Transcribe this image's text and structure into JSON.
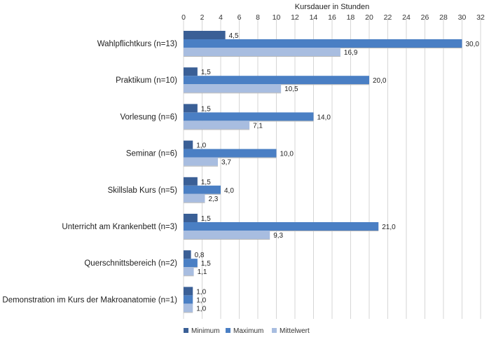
{
  "chart_data": {
    "type": "bar",
    "orientation": "horizontal",
    "title": "",
    "xlabel": "Kursdauer in Stunden",
    "ylabel": "",
    "xlim": [
      0,
      32
    ],
    "x_ticks": [
      "0",
      "2",
      "4",
      "6",
      "8",
      "10",
      "12",
      "14",
      "16",
      "18",
      "20",
      "22",
      "24",
      "26",
      "28",
      "30",
      "32"
    ],
    "x_axis_position": "top",
    "grid": "vertical",
    "legend_position": "bottom",
    "categories": [
      "Wahlpflichtkurs (n=13)",
      "Praktikum (n=10)",
      "Vorlesung (n=6)",
      "Seminar (n=6)",
      "Skillslab Kurs (n=5)",
      "Unterricht am Krankenbett  (n=3)",
      "Querschnittsbereich (n=2)",
      "Demonstration im Kurs der Makroanatomie (n=1)"
    ],
    "series": [
      {
        "name": "Minimum",
        "color": "#3a5f96",
        "values": [
          4.5,
          1.5,
          1.5,
          1.0,
          1.5,
          1.5,
          0.8,
          1.0
        ],
        "labels": [
          "4,5",
          "1,5",
          "1,5",
          "1,0",
          "1,5",
          "1,5",
          "0,8",
          "1,0"
        ]
      },
      {
        "name": "Maximum",
        "color": "#4a7fc4",
        "values": [
          30.0,
          20.0,
          14.0,
          10.0,
          4.0,
          21.0,
          1.5,
          1.0
        ],
        "labels": [
          "30,0",
          "20,0",
          "14,0",
          "10,0",
          "4,0",
          "21,0",
          "1,5",
          "1,0"
        ]
      },
      {
        "name": "Mittelwert",
        "color": "#a8bde0",
        "values": [
          16.9,
          10.5,
          7.1,
          3.7,
          2.3,
          9.3,
          1.1,
          1.0
        ],
        "labels": [
          "16,9",
          "10,5",
          "7,1",
          "3,7",
          "2,3",
          "9,3",
          "1,1",
          "1,0"
        ]
      }
    ]
  }
}
